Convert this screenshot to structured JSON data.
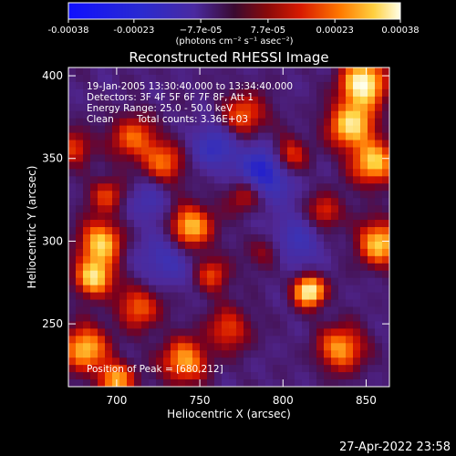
{
  "chart_data": {
    "type": "heatmap",
    "title": "Reconstructed RHESSI Image",
    "xlabel": "Heliocentric X (arcsec)",
    "ylabel": "Heliocentric Y (arcsec)",
    "xlim": [
      671,
      864
    ],
    "ylim": [
      212,
      405
    ],
    "x_ticks": [
      700,
      750,
      800,
      850
    ],
    "y_ticks": [
      250,
      300,
      350,
      400
    ],
    "colorbar": {
      "min": -0.00038,
      "max": 0.00038,
      "ticks": [
        "-0.00038",
        "-0.00023",
        "−7.7e-05",
        "7.7e-05",
        "0.00023",
        "0.00038"
      ],
      "tick_values": [
        -0.00038,
        -0.00023,
        -7.7e-05,
        7.7e-05,
        0.00023,
        0.00038
      ],
      "units": "(photons cm⁻² s⁻¹ asec⁻²)"
    },
    "annotations": {
      "time": "19-Jan-2005 13:30:40.000 to 13:34:40.000",
      "detectors": "Detectors: 3F 4F 5F 6F 7F 8F, Att 1",
      "energy": "Energy Range: 25.0 - 50.0 keV",
      "method": "Clean",
      "counts": "Total counts: 3.36E+03",
      "peak": "Position of Peak = [680,212]"
    },
    "peak_position": [
      680,
      212
    ]
  },
  "footer_date": "27-Apr-2022 23:58"
}
